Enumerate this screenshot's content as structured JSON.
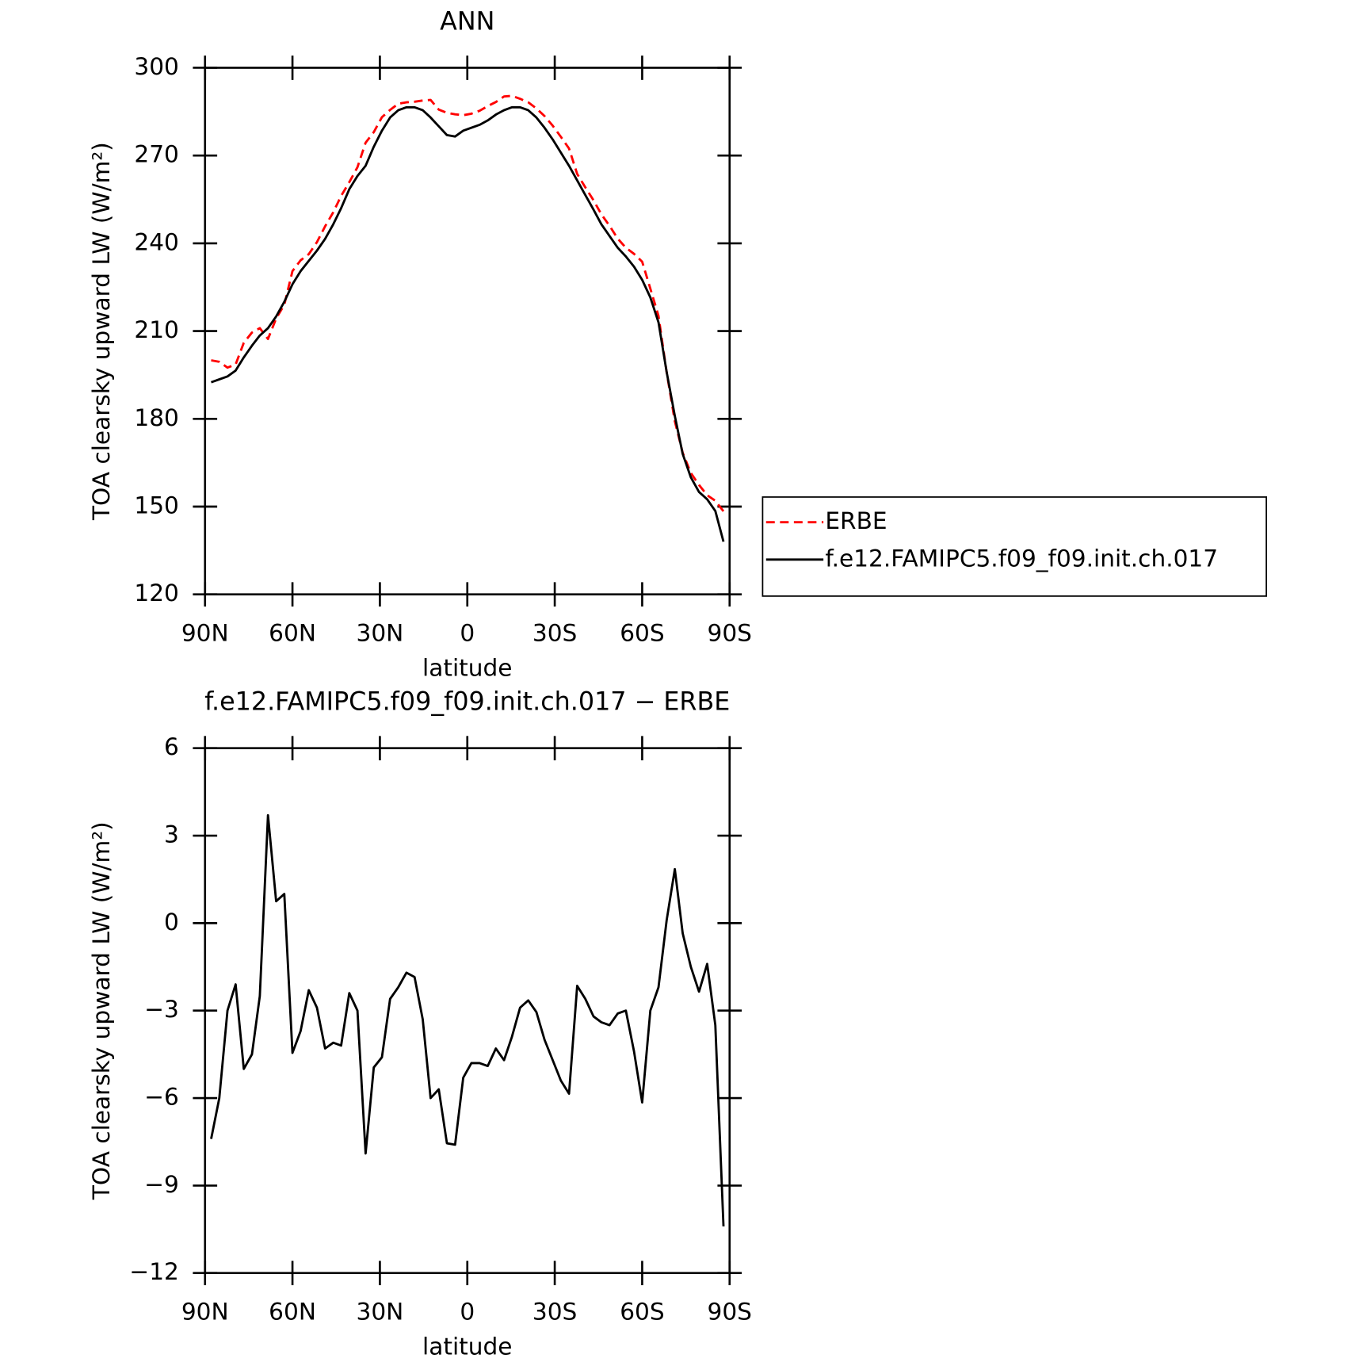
{
  "chart_data": [
    {
      "type": "line",
      "title": "ANN",
      "xlabel": "latitude",
      "ylabel": "TOA clearsky upward LW (W/m²)",
      "x": [
        87.9,
        85.1,
        82.3,
        79.5,
        76.7,
        73.9,
        71.2,
        68.4,
        65.6,
        62.8,
        60.0,
        57.2,
        54.4,
        51.6,
        48.8,
        46.0,
        43.3,
        40.5,
        37.7,
        34.9,
        32.1,
        29.3,
        26.5,
        23.7,
        20.9,
        18.1,
        15.3,
        12.6,
        9.8,
        7.0,
        4.2,
        1.4,
        -1.4,
        -4.2,
        -7.0,
        -9.8,
        -12.6,
        -15.3,
        -18.1,
        -20.9,
        -23.7,
        -26.5,
        -29.3,
        -32.1,
        -34.9,
        -37.7,
        -40.5,
        -43.3,
        -46.0,
        -48.8,
        -51.6,
        -54.4,
        -57.2,
        -60.0,
        -62.8,
        -65.6,
        -68.4,
        -71.2,
        -73.9,
        -76.7,
        -79.5,
        -82.3,
        -85.1,
        -87.9
      ],
      "series": [
        {
          "name": "ERBE",
          "color": "#ff0000",
          "linestyle": "dashed",
          "values": [
            200,
            199.5,
            197.5,
            198.6,
            206,
            209.5,
            211,
            207.3,
            214.3,
            219,
            230.5,
            234.2,
            236.3,
            240.4,
            245.8,
            250.6,
            256.2,
            260.9,
            266,
            274.4,
            278,
            283.1,
            285.6,
            287.7,
            288.2,
            288.4,
            288.8,
            289,
            285.7,
            284.6,
            284.1,
            283.8,
            284.3,
            285.3,
            286.9,
            288.3,
            290.2,
            290.4,
            289.4,
            288.2,
            286.1,
            283.5,
            280.2,
            276.4,
            272.4,
            263.7,
            259.1,
            254.7,
            249.9,
            246,
            241.6,
            238.5,
            236.4,
            233.7,
            224.5,
            215.2,
            195.9,
            179.2,
            168.4,
            161.5,
            157.4,
            153.9,
            152,
            148.4
          ]
        },
        {
          "name": "f.e12.FAMIPC5.f09_f09.init.ch.017",
          "color": "#000000",
          "linestyle": "solid",
          "values": [
            192.5,
            193.5,
            194.5,
            196.5,
            201,
            205,
            208.5,
            211,
            215,
            220,
            226,
            230.5,
            234,
            237.5,
            241.5,
            246.5,
            252,
            258.5,
            263,
            266.5,
            273,
            278.5,
            283,
            285.5,
            286.5,
            286.5,
            285.5,
            283,
            280,
            277,
            276.5,
            278.5,
            279.5,
            280.5,
            282,
            284,
            285.5,
            286.5,
            286.5,
            285.5,
            283,
            279.5,
            275.5,
            271,
            266.5,
            261.5,
            256.5,
            251.5,
            246.5,
            242.5,
            238.5,
            235.5,
            232,
            227.5,
            221.5,
            213,
            196,
            181,
            168,
            160,
            155,
            152.5,
            148.5,
            138
          ]
        }
      ],
      "xlim": [
        90,
        -90
      ],
      "xticks": [
        {
          "value": 90,
          "label": "90N"
        },
        {
          "value": 60,
          "label": "60N"
        },
        {
          "value": 30,
          "label": "30N"
        },
        0,
        {
          "value": -30,
          "label": "30S"
        },
        {
          "value": -60,
          "label": "60S"
        },
        {
          "value": -90,
          "label": "90S"
        }
      ],
      "ylim": [
        120,
        300
      ],
      "yticks": [
        120,
        150,
        180,
        210,
        240,
        270,
        300
      ],
      "legend": "right"
    },
    {
      "type": "line",
      "title": "f.e12.FAMIPC5.f09_f09.init.ch.017 − ERBE",
      "xlabel": "latitude",
      "ylabel": "TOA clearsky upward LW (W/m²)",
      "x": [
        87.9,
        85.1,
        82.3,
        79.5,
        76.7,
        73.9,
        71.2,
        68.4,
        65.6,
        62.8,
        60.0,
        57.2,
        54.4,
        51.6,
        48.8,
        46.0,
        43.3,
        40.5,
        37.7,
        34.9,
        32.1,
        29.3,
        26.5,
        23.7,
        20.9,
        18.1,
        15.3,
        12.6,
        9.8,
        7.0,
        4.2,
        1.4,
        -1.4,
        -4.2,
        -7.0,
        -9.8,
        -12.6,
        -15.3,
        -18.1,
        -20.9,
        -23.7,
        -26.5,
        -29.3,
        -32.1,
        -34.9,
        -37.7,
        -40.5,
        -43.3,
        -46.0,
        -48.8,
        -51.6,
        -54.4,
        -57.2,
        -60.0,
        -62.8,
        -65.6,
        -68.4,
        -71.2,
        -73.9,
        -76.7,
        -79.5,
        -82.3,
        -85.1,
        -87.9
      ],
      "values": [
        -7.4,
        -6.0,
        -3.0,
        -2.1,
        -5.0,
        -4.5,
        -2.5,
        3.7,
        0.75,
        1.0,
        -4.45,
        -3.7,
        -2.3,
        -2.9,
        -4.3,
        -4.1,
        -4.2,
        -2.4,
        -3.0,
        -7.9,
        -4.95,
        -4.6,
        -2.6,
        -2.2,
        -1.7,
        -1.85,
        -3.3,
        -6.0,
        -5.7,
        -7.55,
        -7.6,
        -5.3,
        -4.8,
        -4.8,
        -4.9,
        -4.3,
        -4.7,
        -3.9,
        -2.9,
        -2.65,
        -3.05,
        -4.0,
        -4.7,
        -5.4,
        -5.85,
        -2.15,
        -2.6,
        -3.2,
        -3.4,
        -3.5,
        -3.1,
        -3.0,
        -4.4,
        -6.15,
        -3.0,
        -2.2,
        0.1,
        1.85,
        -0.35,
        -1.5,
        -2.35,
        -1.4,
        -3.5,
        -10.4
      ],
      "color": "#000000",
      "xlim": [
        90,
        -90
      ],
      "xticks": [
        {
          "value": 90,
          "label": "90N"
        },
        {
          "value": 60,
          "label": "60N"
        },
        {
          "value": 30,
          "label": "30N"
        },
        0,
        {
          "value": -30,
          "label": "30S"
        },
        {
          "value": -60,
          "label": "60S"
        },
        {
          "value": -90,
          "label": "90S"
        }
      ],
      "ylim": [
        -12,
        6
      ],
      "yticks": [
        {
          "value": -12,
          "label": "−12"
        },
        {
          "value": -9,
          "label": "−9"
        },
        {
          "value": -6,
          "label": "−6"
        },
        {
          "value": -3,
          "label": "−3"
        },
        0,
        3,
        6
      ]
    }
  ]
}
